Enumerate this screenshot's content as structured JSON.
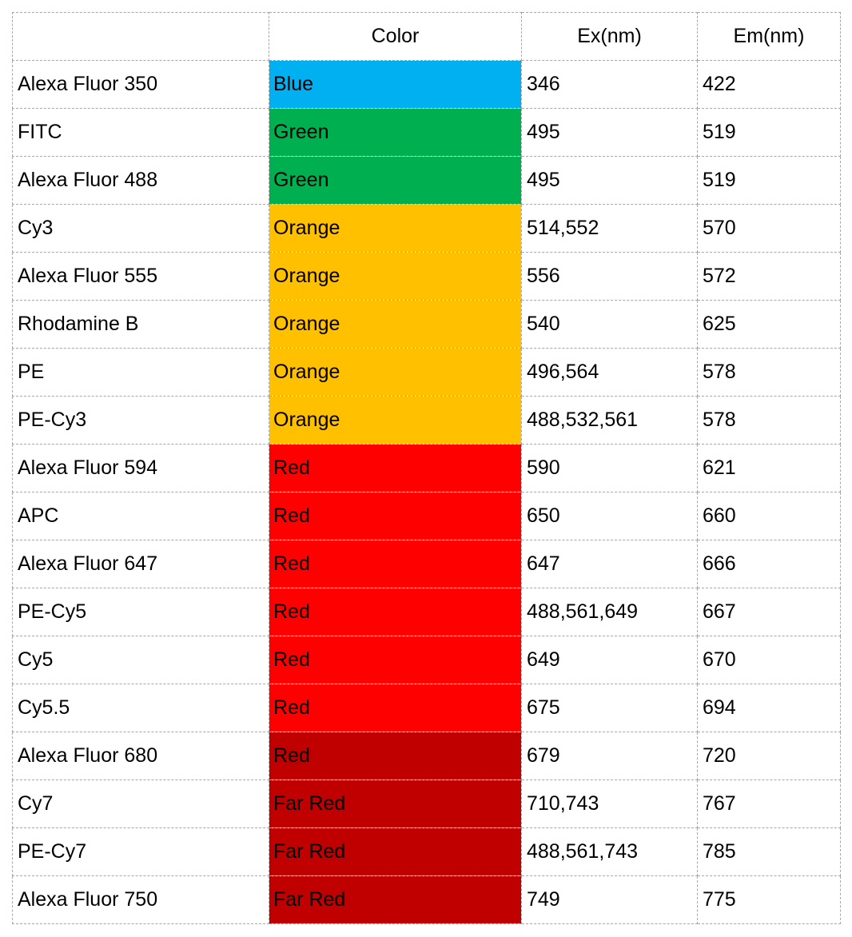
{
  "table": {
    "header": [
      "",
      "Color",
      "Ex(nm)",
      "Em(nm)"
    ],
    "rows": [
      [
        "Alexa Fluor 350",
        "Blue",
        "346",
        "422"
      ],
      [
        "FITC",
        "Green",
        "495",
        "519"
      ],
      [
        "Alexa Fluor 488",
        "Green",
        "495",
        "519"
      ],
      [
        "Cy3",
        "Orange",
        "514,552",
        "570"
      ],
      [
        "Alexa Fluor 555",
        "Orange",
        "556",
        "572"
      ],
      [
        "Rhodamine B",
        "Orange",
        "540",
        "625"
      ],
      [
        "PE",
        "Orange",
        "496,564",
        "578"
      ],
      [
        "PE-Cy3",
        "Orange",
        "488,532,561",
        "578"
      ],
      [
        "Alexa Fluor 594",
        "Red",
        "590",
        "621"
      ],
      [
        "APC",
        "Red",
        "650",
        "660"
      ],
      [
        "Alexa Fluor 647",
        "Red",
        "647",
        "666"
      ],
      [
        "PE-Cy5",
        "Red",
        "488,561,649",
        "667"
      ],
      [
        "Cy5",
        "Red",
        "649",
        "670"
      ],
      [
        "Cy5.5",
        "Red",
        "675",
        "694"
      ],
      [
        "Alexa Fluor 680",
        "Red",
        "679",
        "720"
      ],
      [
        "Cy7",
        "Far Red",
        "710,743",
        "767"
      ],
      [
        "PE-Cy7",
        "Far Red",
        "488,561,743",
        "785"
      ],
      [
        "Alexa Fluor 750",
        "Far Red",
        "749",
        "775"
      ]
    ]
  }
}
